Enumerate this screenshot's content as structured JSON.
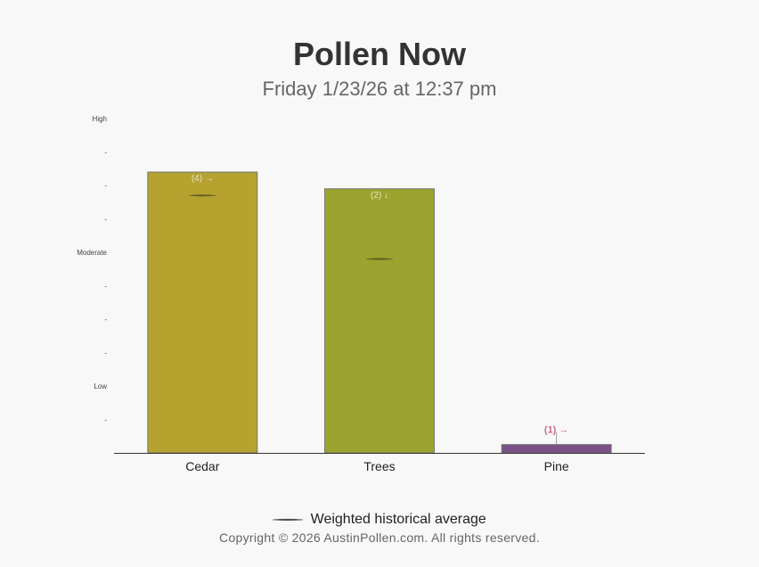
{
  "header": {
    "title": "Pollen Now",
    "subtitle": "Friday 1/23/26 at 12:37 pm"
  },
  "chart_data": {
    "type": "bar",
    "title": "Pollen Now",
    "subtitle": "Friday 1/23/26 at 12:37 pm",
    "categories": [
      "Cedar",
      "Trees",
      "Pine"
    ],
    "values": [
      8.4,
      7.9,
      0.25
    ],
    "historical_average": [
      7.7,
      5.8,
      null
    ],
    "ylim": [
      0,
      10
    ],
    "yticks": [
      {
        "value": 1,
        "label": "-"
      },
      {
        "value": 2,
        "label": "Low"
      },
      {
        "value": 3,
        "label": "-"
      },
      {
        "value": 4,
        "label": "-"
      },
      {
        "value": 5,
        "label": "-"
      },
      {
        "value": 6,
        "label": "Moderate"
      },
      {
        "value": 7,
        "label": "-"
      },
      {
        "value": 8,
        "label": "-"
      },
      {
        "value": 9,
        "label": "-"
      },
      {
        "value": 10,
        "label": "High"
      }
    ],
    "bar_labels": [
      "(4) →",
      "(2) ↓",
      "(1) →"
    ],
    "bar_colors": [
      "#b5a22f",
      "#9ca32e",
      "#7a5186"
    ],
    "bar_stroke": "#777777",
    "avg_color": "#555522",
    "pine_label_color": "#c9698f",
    "grid": false
  },
  "legend": {
    "label": "Weighted historical average",
    "line_color": "#555555"
  },
  "footer": {
    "copyright": "Copyright © 2026 AustinPollen.com.  All rights reserved."
  }
}
